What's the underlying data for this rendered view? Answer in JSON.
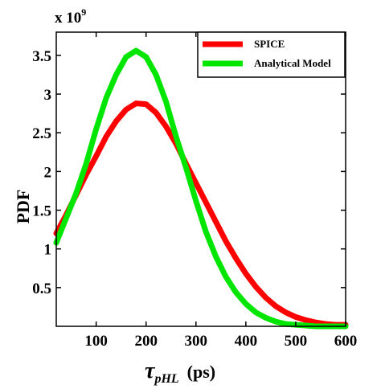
{
  "chart_data": {
    "type": "line",
    "title": "",
    "xlabel": "τ_pHL (ps)",
    "xlabel_parts": {
      "symbol": "τ",
      "subscript": "pHL",
      "unit": "(ps)"
    },
    "ylabel": "PDF",
    "y_multiplier_label": {
      "base": "x 10",
      "exponent": "9"
    },
    "xlim": [
      20,
      600
    ],
    "ylim": [
      0,
      3.8
    ],
    "xticks": [
      100,
      200,
      300,
      400,
      500,
      600
    ],
    "yticks": [
      0.5,
      1,
      1.5,
      2,
      2.5,
      3,
      3.5
    ],
    "xtick_labels": [
      "100",
      "200",
      "300",
      "400",
      "500",
      "600"
    ],
    "ytick_labels": [
      "0.5",
      "1",
      "1.5",
      "2",
      "2.5",
      "3",
      "3.5"
    ],
    "grid": false,
    "legend_position": "top-right",
    "series": [
      {
        "name": "SPICE",
        "color": "#ff0000",
        "x": [
          20,
          40,
          60,
          80,
          100,
          120,
          140,
          160,
          180,
          200,
          220,
          240,
          260,
          280,
          300,
          320,
          340,
          360,
          380,
          400,
          420,
          440,
          460,
          480,
          500,
          520,
          540,
          560,
          580,
          600
        ],
        "y": [
          1.2,
          1.44,
          1.7,
          1.96,
          2.2,
          2.45,
          2.65,
          2.8,
          2.88,
          2.87,
          2.76,
          2.58,
          2.36,
          2.1,
          1.85,
          1.6,
          1.35,
          1.1,
          0.88,
          0.68,
          0.51,
          0.37,
          0.26,
          0.18,
          0.12,
          0.08,
          0.05,
          0.03,
          0.02,
          0.02
        ]
      },
      {
        "name": "Analytical Model",
        "color": "#00e600",
        "x": [
          20,
          40,
          60,
          80,
          100,
          120,
          140,
          160,
          180,
          200,
          220,
          240,
          260,
          280,
          300,
          320,
          340,
          360,
          380,
          400,
          420,
          440,
          460,
          480,
          500,
          520,
          540,
          560,
          580,
          600
        ],
        "y": [
          1.08,
          1.4,
          1.72,
          2.1,
          2.55,
          2.95,
          3.25,
          3.48,
          3.56,
          3.48,
          3.25,
          2.9,
          2.45,
          2.05,
          1.62,
          1.22,
          0.9,
          0.64,
          0.44,
          0.29,
          0.18,
          0.11,
          0.06,
          0.03,
          0.02,
          0.01,
          0.0,
          0.0,
          0.0,
          0.0
        ]
      }
    ]
  }
}
